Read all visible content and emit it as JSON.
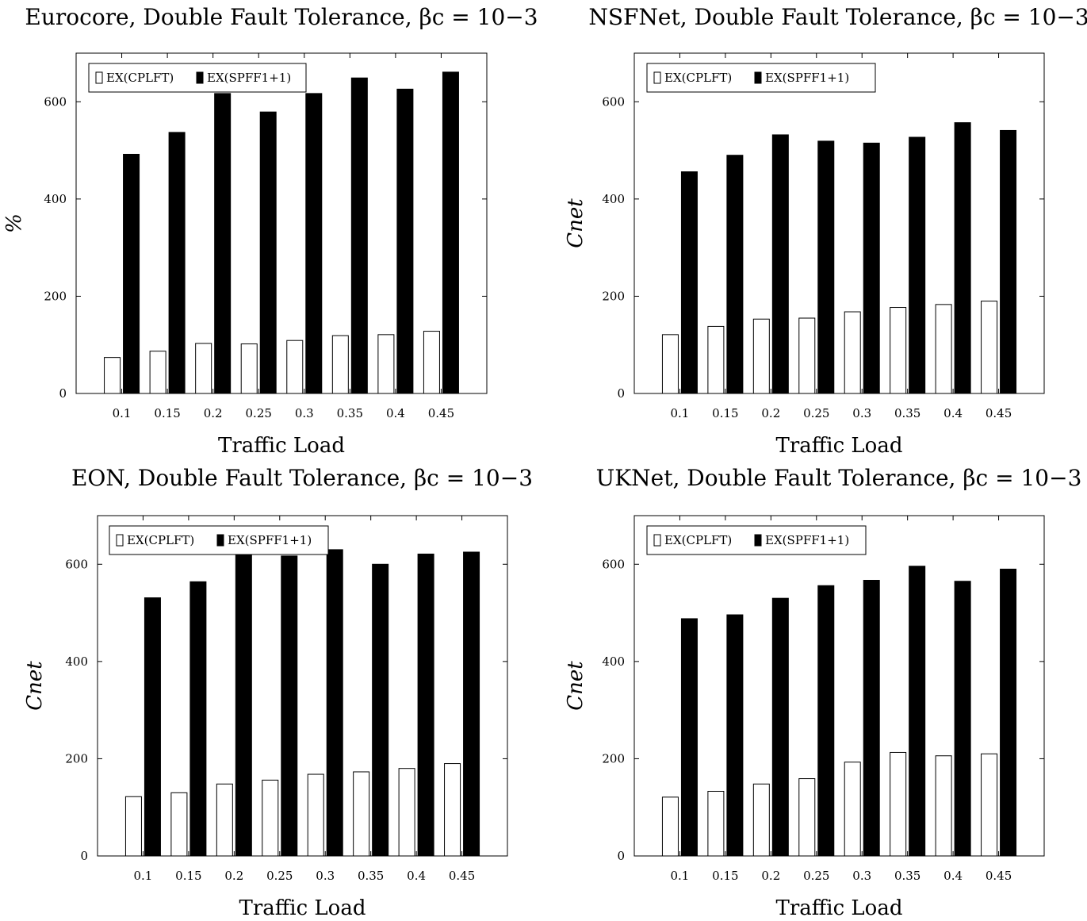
{
  "chart_data": [
    {
      "type": "bar",
      "title": "Eurocore, Double Fault Tolerance, βc = 10−3",
      "xlabel": "Traffic Load",
      "ylabel": "%",
      "ylim": [
        0,
        700
      ],
      "yticks": [
        0,
        200,
        400,
        600
      ],
      "categories": [
        "0.1",
        "0.15",
        "0.2",
        "0.25",
        "0.3",
        "0.35",
        "0.4",
        "0.45"
      ],
      "legend_position": "top-left",
      "series": [
        {
          "name": "EX(CPLFT)",
          "fill": "#ffffff",
          "values": [
            74,
            87,
            103,
            102,
            109,
            119,
            121,
            128
          ]
        },
        {
          "name": "EX(SPFF1+1)",
          "fill": "#000000",
          "values": [
            492,
            537,
            617,
            579,
            617,
            649,
            626,
            661
          ]
        }
      ]
    },
    {
      "type": "bar",
      "title": "NSFNet, Double Fault Tolerance, βc = 10−3",
      "xlabel": "Traffic Load",
      "ylabel": "Cnet",
      "ylim": [
        0,
        700
      ],
      "yticks": [
        0,
        200,
        400,
        600
      ],
      "categories": [
        "0.1",
        "0.15",
        "0.2",
        "0.25",
        "0.3",
        "0.35",
        "0.4",
        "0.45"
      ],
      "legend_position": "top-left",
      "series": [
        {
          "name": "EX(CPLFT)",
          "fill": "#ffffff",
          "values": [
            121,
            138,
            153,
            155,
            168,
            177,
            183,
            190
          ]
        },
        {
          "name": "EX(SPFF1+1)",
          "fill": "#000000",
          "values": [
            456,
            490,
            532,
            519,
            515,
            527,
            557,
            541
          ]
        }
      ]
    },
    {
      "type": "bar",
      "title": "EON, Double Fault Tolerance, βc = 10−3",
      "xlabel": "Traffic Load",
      "ylabel": "Cnet",
      "ylim": [
        0,
        700
      ],
      "yticks": [
        0,
        200,
        400,
        600
      ],
      "categories": [
        "0.1",
        "0.15",
        "0.2",
        "0.25",
        "0.3",
        "0.35",
        "0.4",
        "0.45"
      ],
      "legend_position": "top-left",
      "series": [
        {
          "name": "EX(CPLFT)",
          "fill": "#ffffff",
          "values": [
            122,
            130,
            148,
            156,
            168,
            173,
            180,
            190
          ]
        },
        {
          "name": "EX(SPFF1+1)",
          "fill": "#000000",
          "values": [
            531,
            564,
            620,
            617,
            630,
            600,
            621,
            625
          ]
        }
      ]
    },
    {
      "type": "bar",
      "title": "UKNet, Double Fault Tolerance, βc = 10−3",
      "xlabel": "Traffic Load",
      "ylabel": "Cnet",
      "ylim": [
        0,
        700
      ],
      "yticks": [
        0,
        200,
        400,
        600
      ],
      "categories": [
        "0.1",
        "0.15",
        "0.2",
        "0.25",
        "0.3",
        "0.35",
        "0.4",
        "0.45"
      ],
      "legend_position": "top-left",
      "series": [
        {
          "name": "EX(CPLFT)",
          "fill": "#ffffff",
          "values": [
            121,
            133,
            148,
            159,
            193,
            213,
            206,
            210
          ]
        },
        {
          "name": "EX(SPFF1+1)",
          "fill": "#000000",
          "values": [
            488,
            496,
            530,
            556,
            567,
            596,
            565,
            590
          ]
        }
      ]
    }
  ]
}
